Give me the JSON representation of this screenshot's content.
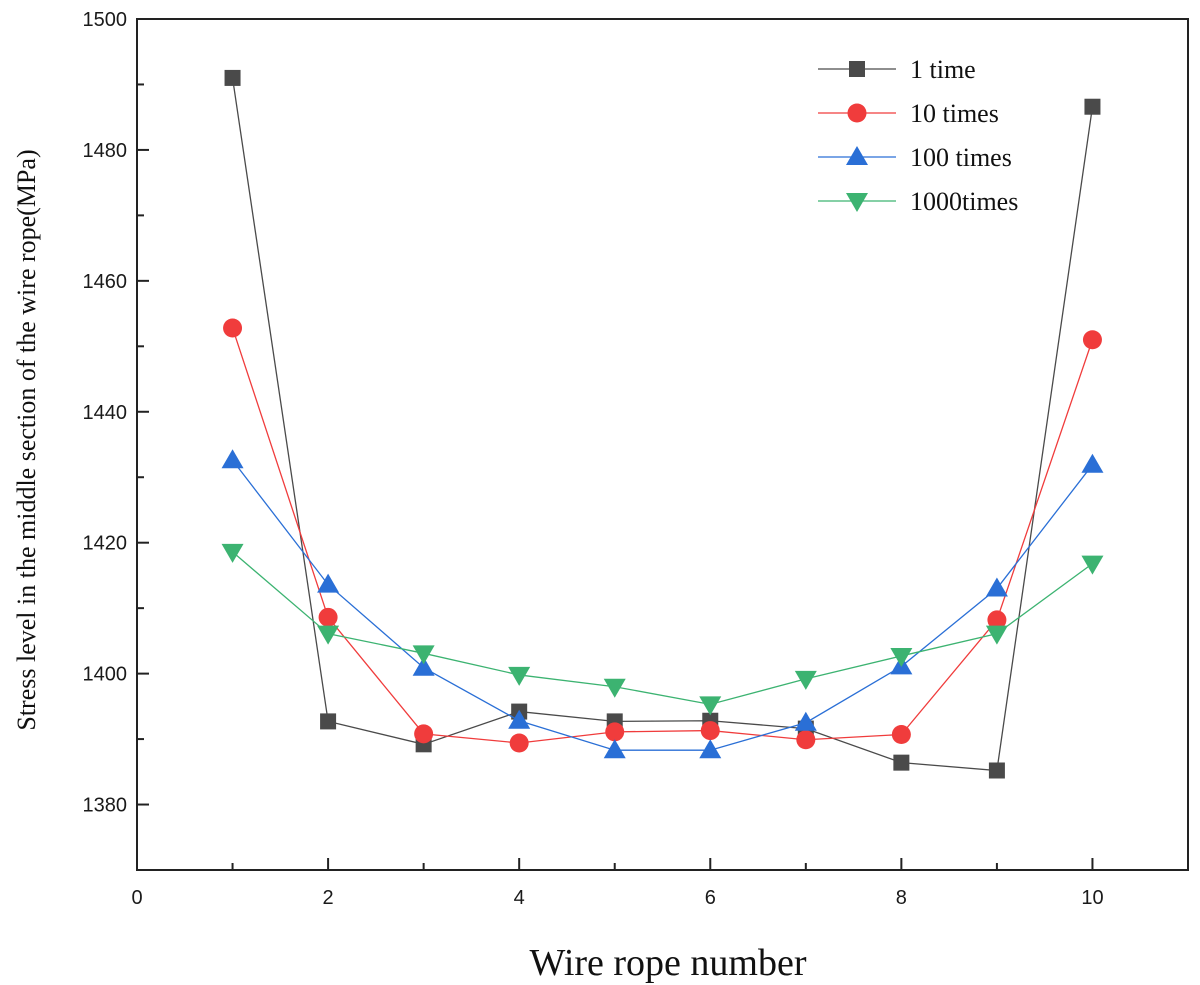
{
  "chart_data": {
    "type": "line",
    "title": "",
    "xlabel": "Wire rope number",
    "ylabel": "Stress level in the middle section of the wire rope(MPa)",
    "xlim": [
      0,
      11
    ],
    "ylim": [
      1370,
      1500
    ],
    "x_ticks": [
      0,
      2,
      4,
      6,
      8,
      10
    ],
    "y_ticks": [
      1380,
      1400,
      1420,
      1440,
      1460,
      1480,
      1500
    ],
    "grid": false,
    "legend_position": "top-right",
    "x": [
      1,
      2,
      3,
      4,
      5,
      6,
      7,
      8,
      9,
      10
    ],
    "series": [
      {
        "name": "1 time",
        "marker": "square",
        "color": "#4a4a4a",
        "values": [
          1491,
          1392.7,
          1389.2,
          1394.2,
          1392.7,
          1392.8,
          1391.6,
          1386.4,
          1385.2,
          1486.6
        ]
      },
      {
        "name": "10 times",
        "marker": "circle",
        "color": "#f03c3c",
        "values": [
          1452.8,
          1408.6,
          1390.8,
          1389.4,
          1391.1,
          1391.3,
          1389.9,
          1390.7,
          1408.2,
          1451
        ]
      },
      {
        "name": "100 times",
        "marker": "triangle-up",
        "color": "#2a6fd6",
        "values": [
          1432.6,
          1413.6,
          1400.9,
          1392.8,
          1388.3,
          1388.3,
          1392.5,
          1401.1,
          1413,
          1431.9
        ]
      },
      {
        "name": "1000times",
        "marker": "triangle-down",
        "color": "#3cb371",
        "values": [
          1418.6,
          1406.1,
          1403.1,
          1399.8,
          1398,
          1395.3,
          1399.2,
          1402.7,
          1406.1,
          1416.8
        ]
      }
    ]
  }
}
